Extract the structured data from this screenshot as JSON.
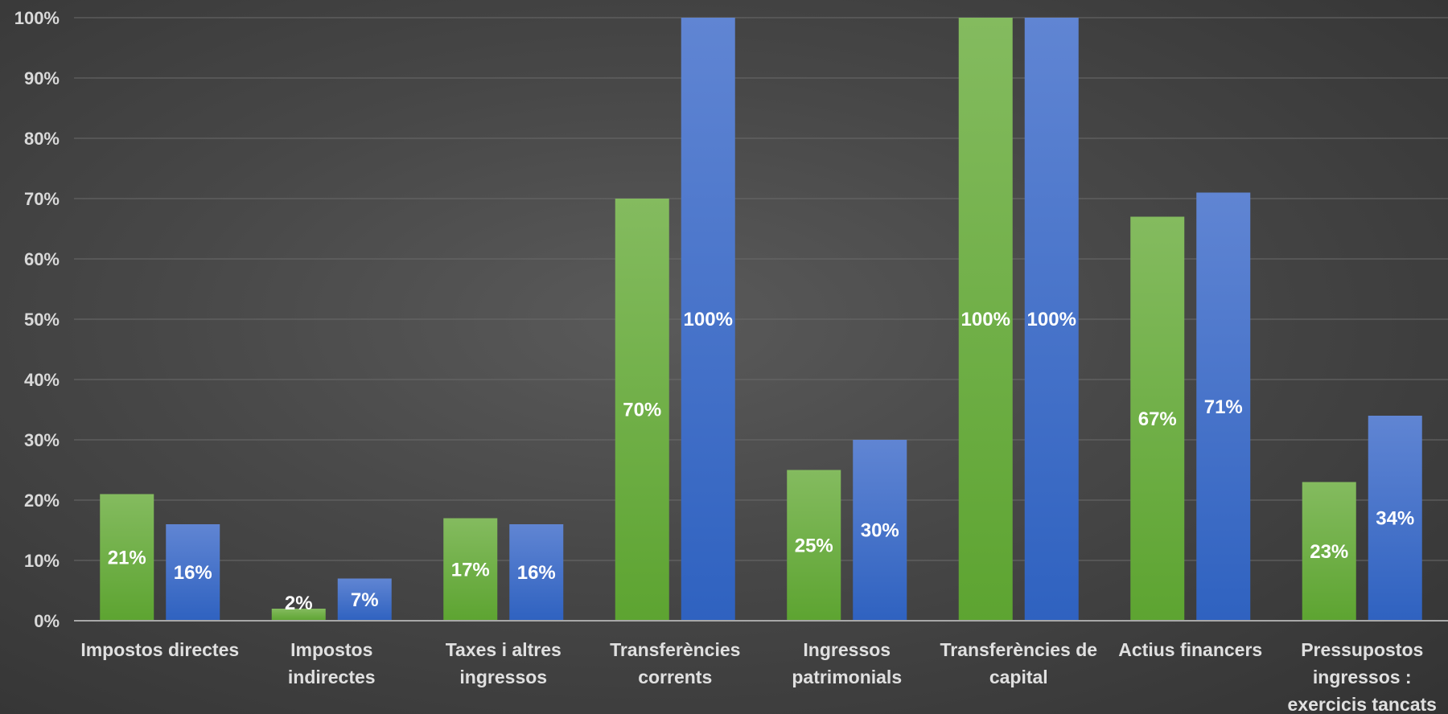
{
  "chart_data": {
    "type": "bar",
    "title": "",
    "xlabel": "",
    "ylabel": "",
    "ylim": [
      0,
      100
    ],
    "yticks": [
      "0%",
      "10%",
      "20%",
      "30%",
      "40%",
      "50%",
      "60%",
      "70%",
      "80%",
      "90%",
      "100%"
    ],
    "grid": true,
    "legend": "none",
    "categories": [
      [
        "Impostos directes"
      ],
      [
        "Impostos",
        "indirectes"
      ],
      [
        "Taxes i altres",
        "ingressos"
      ],
      [
        "Transferències",
        "corrents"
      ],
      [
        "Ingressos",
        "patrimonials"
      ],
      [
        "Transferències de",
        "capital"
      ],
      [
        "Actius financers"
      ],
      [
        "Pressupostos",
        "ingressos :",
        "exercicis tancats"
      ]
    ],
    "series": [
      {
        "color_top": "#84bb5f",
        "color_bottom": "#5da431",
        "values": [
          21,
          2,
          17,
          70,
          25,
          100,
          67,
          23
        ],
        "labels": [
          "21%",
          "2%",
          "17%",
          "70%",
          "25%",
          "100%",
          "67%",
          "23%"
        ]
      },
      {
        "color_top": "#6085d3",
        "color_bottom": "#2f62c0",
        "values": [
          16,
          7,
          16,
          100,
          30,
          100,
          71,
          34
        ],
        "labels": [
          "16%",
          "7%",
          "16%",
          "100%",
          "30%",
          "100%",
          "71%",
          "34%"
        ]
      }
    ]
  }
}
